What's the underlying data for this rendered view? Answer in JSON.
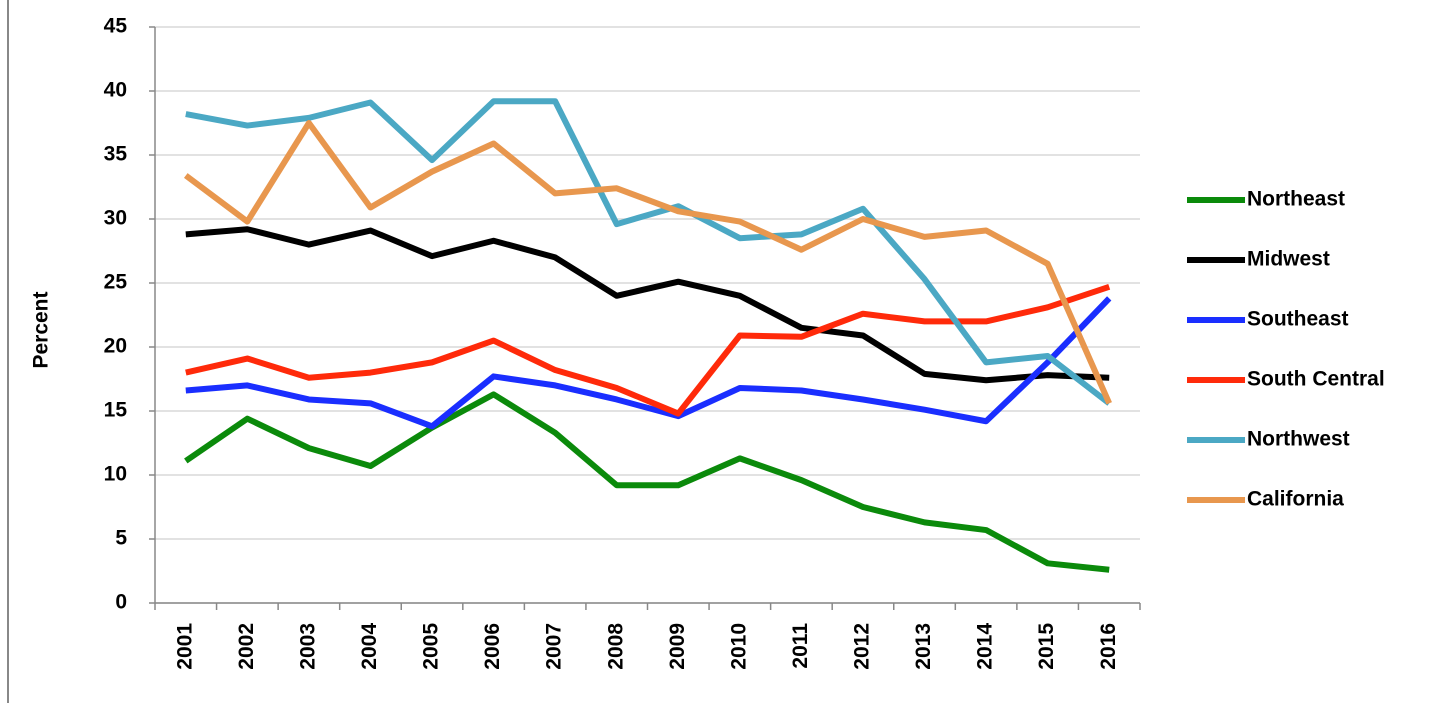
{
  "chart_data": {
    "type": "line",
    "y_label": "Percent",
    "categories": [
      "2001",
      "2002",
      "2003",
      "2004",
      "2005",
      "2006",
      "2007",
      "2008",
      "2009",
      "2010",
      "2011",
      "2012",
      "2013",
      "2014",
      "2015",
      "2016"
    ],
    "ylim": [
      0,
      45
    ],
    "yticks": [
      0,
      5,
      10,
      15,
      20,
      25,
      30,
      35,
      40,
      45
    ],
    "grid": true,
    "legend": "right",
    "series": [
      {
        "name": "Northeast",
        "color": "#0b8a0b",
        "values": [
          11.1,
          14.4,
          12.1,
          10.7,
          13.7,
          16.3,
          13.3,
          9.2,
          9.2,
          11.3,
          9.6,
          7.5,
          6.3,
          5.7,
          3.1,
          2.6
        ]
      },
      {
        "name": "Midwest",
        "color": "#000000",
        "values": [
          28.8,
          29.2,
          28.0,
          29.1,
          27.1,
          28.3,
          27.0,
          24.0,
          25.1,
          24.0,
          21.5,
          20.9,
          17.9,
          17.4,
          17.8,
          17.6
        ]
      },
      {
        "name": "Southeast",
        "color": "#1a2eff",
        "values": [
          16.6,
          17.0,
          15.9,
          15.6,
          13.8,
          17.7,
          17.0,
          15.9,
          14.6,
          16.8,
          16.6,
          15.9,
          15.1,
          14.2,
          18.8,
          23.8
        ]
      },
      {
        "name": "South Central",
        "color": "#ff2a0a",
        "values": [
          18.0,
          19.1,
          17.6,
          18.0,
          18.8,
          20.5,
          18.2,
          16.8,
          14.8,
          20.9,
          20.8,
          22.6,
          22.0,
          22.0,
          23.1,
          24.7
        ]
      },
      {
        "name": "Northwest",
        "color": "#4ba8c4",
        "values": [
          38.2,
          37.3,
          37.9,
          39.1,
          34.6,
          39.2,
          39.2,
          29.6,
          31.0,
          28.5,
          28.8,
          30.8,
          25.3,
          18.8,
          19.3,
          15.6
        ]
      },
      {
        "name": "California",
        "color": "#e8974e",
        "values": [
          33.4,
          29.8,
          37.5,
          30.9,
          33.7,
          35.9,
          32.0,
          32.4,
          30.6,
          29.8,
          27.6,
          30.0,
          28.6,
          29.1,
          26.5,
          15.6
        ]
      }
    ]
  }
}
